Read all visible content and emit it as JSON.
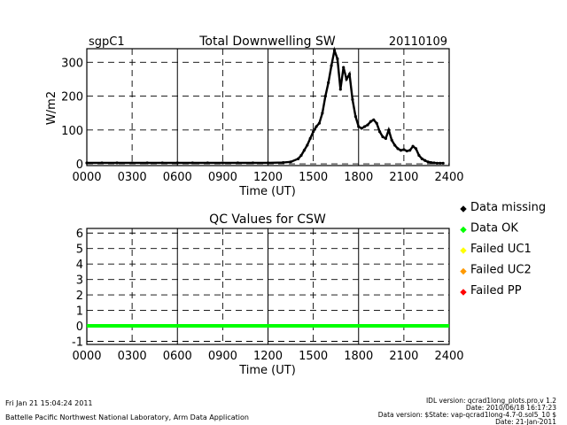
{
  "chart_data": [
    {
      "type": "scatter",
      "site": "sgpC1",
      "title": "Total Downwelling SW",
      "date": "20110109",
      "xlabel": "Time (UT)",
      "ylabel": "W/m2",
      "xlim": [
        0,
        2400
      ],
      "ylim": [
        -5,
        340
      ],
      "x_ticks": [
        "0000",
        "0300",
        "0600",
        "0900",
        "1200",
        "1500",
        "1800",
        "2100",
        "2400"
      ],
      "y_ticks": [
        "0",
        "100",
        "200",
        "300"
      ],
      "grid": true,
      "series": [
        {
          "color": "#000000",
          "x": [
            0,
            100,
            200,
            300,
            400,
            500,
            600,
            700,
            800,
            900,
            1000,
            1100,
            1200,
            1300,
            1350,
            1400,
            1420,
            1440,
            1460,
            1480,
            1500,
            1520,
            1540,
            1560,
            1580,
            1600,
            1620,
            1640,
            1660,
            1680,
            1700,
            1720,
            1740,
            1760,
            1780,
            1800,
            1820,
            1840,
            1860,
            1880,
            1900,
            1920,
            1940,
            1960,
            1980,
            2000,
            2020,
            2040,
            2060,
            2080,
            2100,
            2120,
            2140,
            2160,
            2180,
            2200,
            2220,
            2240,
            2260,
            2280,
            2300,
            2320,
            2340,
            2360
          ],
          "y": [
            3,
            3,
            3,
            3,
            3,
            3,
            3,
            3,
            3,
            3,
            3,
            3,
            3,
            4,
            6,
            15,
            25,
            40,
            55,
            75,
            95,
            110,
            120,
            150,
            200,
            240,
            290,
            335,
            310,
            220,
            285,
            250,
            265,
            190,
            140,
            110,
            105,
            110,
            115,
            125,
            130,
            120,
            95,
            80,
            75,
            100,
            70,
            55,
            45,
            40,
            42,
            38,
            40,
            52,
            45,
            25,
            15,
            10,
            6,
            4,
            3,
            2,
            2,
            2
          ]
        }
      ]
    },
    {
      "type": "scatter",
      "title": "QC Values for CSW",
      "xlabel": "Time (UT)",
      "xlim": [
        0,
        2400
      ],
      "ylim": [
        -1.2,
        6.3
      ],
      "x_ticks": [
        "0000",
        "0300",
        "0600",
        "0900",
        "1200",
        "1500",
        "1800",
        "2100",
        "2400"
      ],
      "y_ticks": [
        "-1",
        "0",
        "1",
        "2",
        "3",
        "4",
        "5",
        "6"
      ],
      "grid": true,
      "series": [
        {
          "name": "Data OK",
          "color": "#00ff00",
          "x": [
            0,
            2400
          ],
          "y": [
            0,
            0
          ]
        }
      ],
      "legend": {
        "placement": "right",
        "entries": [
          {
            "label": "Data missing",
            "color": "#000000"
          },
          {
            "label": "Data OK",
            "color": "#00ff00"
          },
          {
            "label": "Failed UC1",
            "color": "#ffff00"
          },
          {
            "label": "Failed UC2",
            "color": "#ff9900"
          },
          {
            "label": "Failed PP",
            "color": "#ff0000"
          }
        ]
      }
    }
  ],
  "footer": {
    "timestamp": "Fri Jan 21 15:04:24 2011",
    "lab": "Battelle Pacific Northwest National Laboratory, Arm Data Application",
    "idl_version": "IDL version: qcrad1long_plots.pro,v 1.2",
    "idl_date": "Date: 2010/06/18 16:17:23",
    "data_version": "Data version: $State: vap-qcrad1long-4.7-0.sol5_10 $",
    "data_date": "Date: 21-Jan-2011"
  }
}
